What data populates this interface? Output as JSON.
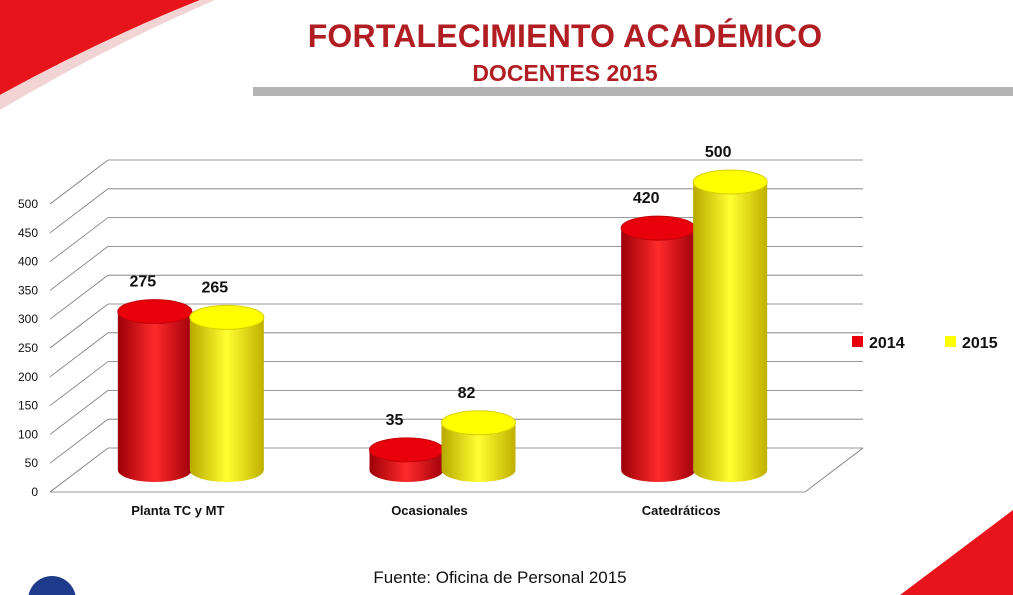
{
  "title": "FORTALECIMIENTO ACADÉMICO",
  "subtitle": "DOCENTES 2015",
  "source": "Fuente: Oficina de Personal 2015",
  "chart_data": {
    "type": "bar",
    "style": "3d-cylinder",
    "categories": [
      "Planta TC y MT",
      "Ocasionales",
      "Catedráticos"
    ],
    "series": [
      {
        "name": "2014",
        "color": "#e8000b",
        "values": [
          275,
          35,
          420
        ]
      },
      {
        "name": "2015",
        "color": "#ffff00",
        "values": [
          265,
          82,
          500
        ]
      }
    ],
    "ylim": [
      0,
      500
    ],
    "yticks": [
      0,
      50,
      100,
      150,
      200,
      250,
      300,
      350,
      400,
      450,
      500
    ],
    "grid": true,
    "legend_position": "right",
    "data_labels": true
  }
}
